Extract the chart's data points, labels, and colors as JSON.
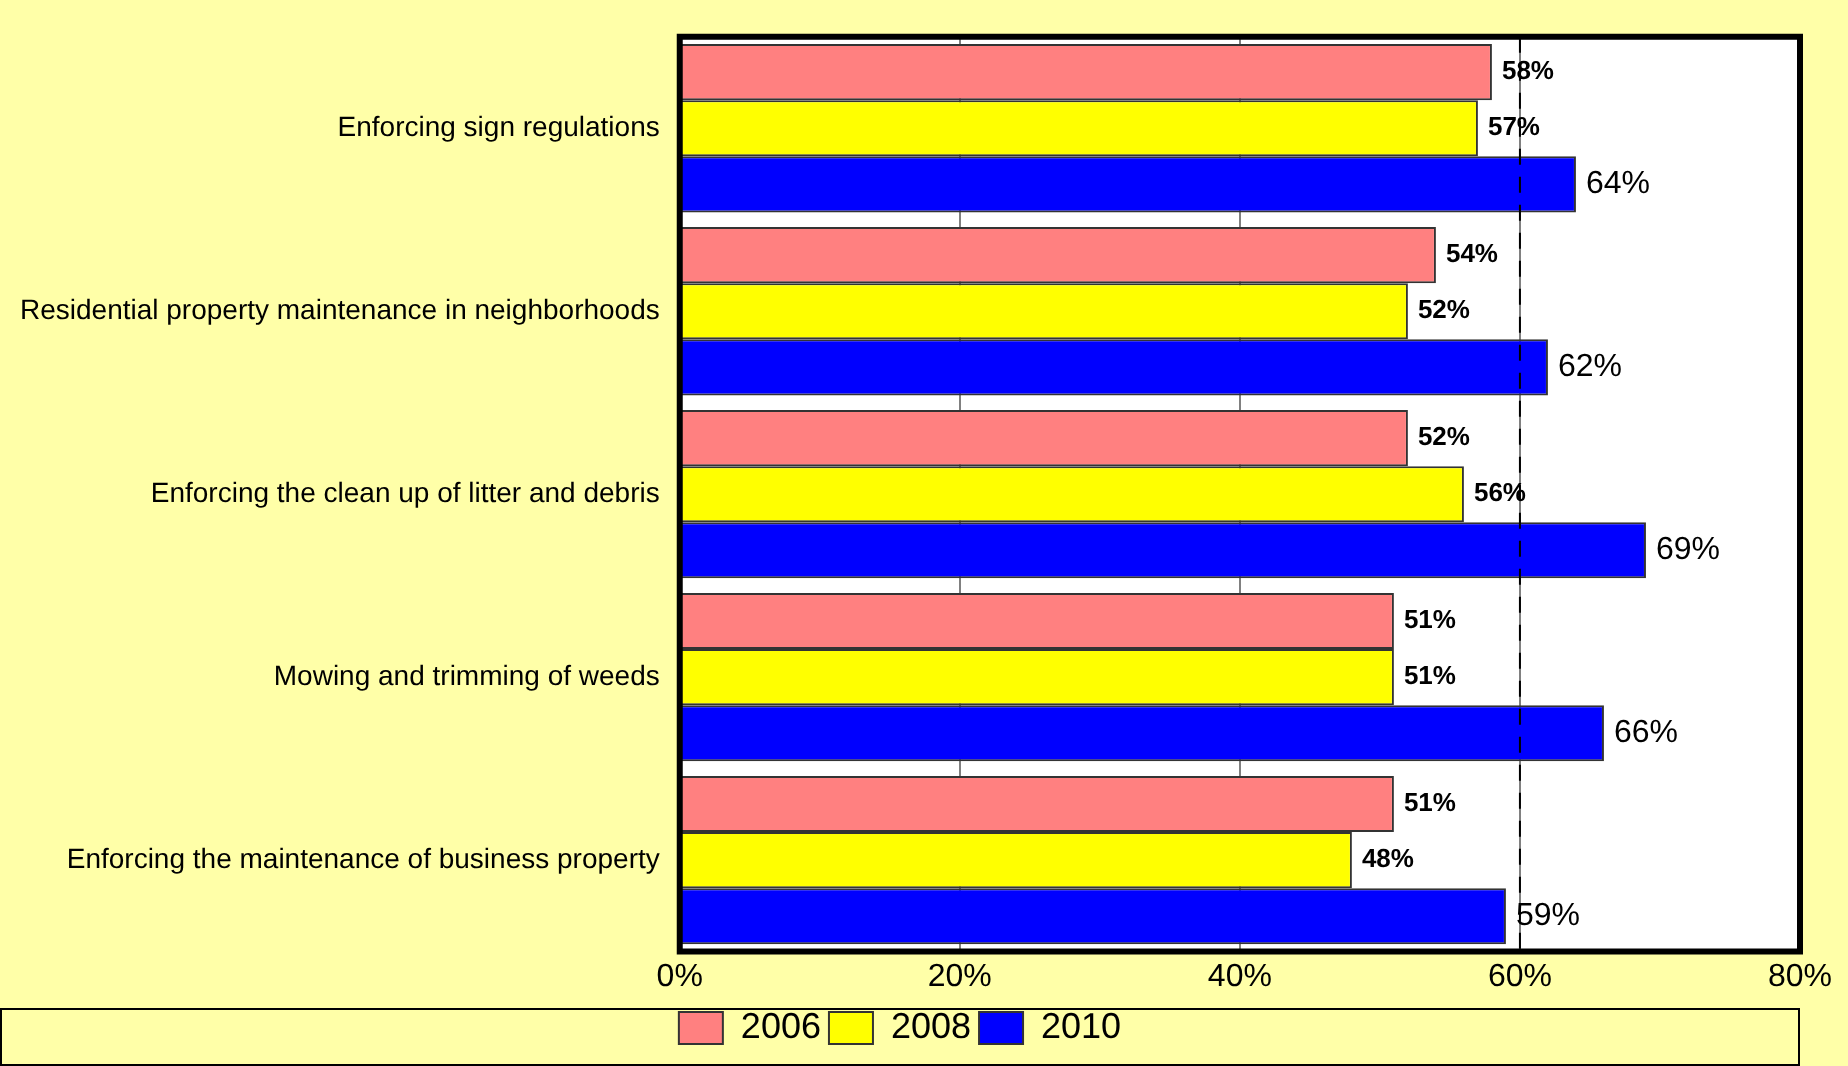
{
  "chart_data": {
    "type": "bar",
    "orientation": "horizontal",
    "categories": [
      "Enforcing sign regulations",
      "Residential property maintenance in neighborhoods",
      "Enforcing the clean up of litter and debris",
      "Mowing and trimming of weeds",
      "Enforcing the maintenance of business property"
    ],
    "series": [
      {
        "name": "2006",
        "color": "#ff8080",
        "values": [
          58,
          54,
          52,
          51,
          51
        ],
        "value_labels": [
          "58%",
          "54%",
          "52%",
          "51%",
          "51%"
        ]
      },
      {
        "name": "2008",
        "color": "#ffff00",
        "values": [
          57,
          52,
          56,
          51,
          48
        ],
        "value_labels": [
          "57%",
          "52%",
          "56%",
          "51%",
          "48%"
        ]
      },
      {
        "name": "2010",
        "color": "#0000ff",
        "values": [
          64,
          62,
          69,
          66,
          59
        ],
        "value_labels": [
          "64%",
          "62%",
          "69%",
          "66%",
          "59%"
        ]
      }
    ],
    "xlim": [
      0,
      80
    ],
    "xticks": [
      {
        "value": 0,
        "label": "0%"
      },
      {
        "value": 20,
        "label": "20%"
      },
      {
        "value": 40,
        "label": "40%"
      },
      {
        "value": 60,
        "label": "60%"
      },
      {
        "value": 80,
        "label": "80%"
      }
    ],
    "grid": "x",
    "legend": "bottom",
    "ref_lines": [
      {
        "axis": "x",
        "value": 60,
        "label": null,
        "line_style": "dashed",
        "color": "#000000"
      }
    ]
  }
}
